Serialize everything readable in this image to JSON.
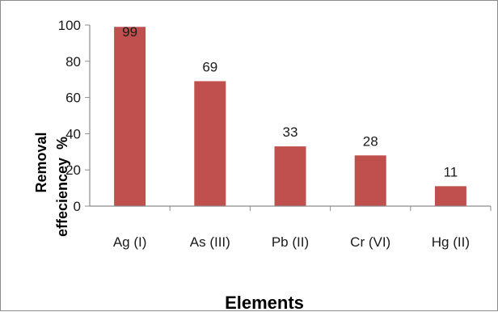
{
  "chart_data": {
    "type": "bar",
    "title": "",
    "categories": [
      "Ag (I)",
      "As (III)",
      "Pb (II)",
      "Cr (VI)",
      "Hg (II)"
    ],
    "values": [
      99,
      69,
      33,
      28,
      11
    ],
    "data_labels": [
      "99",
      "69",
      "33",
      "28",
      "11"
    ],
    "xlabel": "Elements",
    "ylabel_lines": [
      "Removal",
      "effeciencey  %"
    ],
    "ylim": [
      0,
      100
    ],
    "yticks": [
      0,
      20,
      40,
      60,
      80,
      100
    ],
    "grid": false,
    "legend": "none",
    "bar_color": "#c0504d",
    "axis_color": "#8c8c8c"
  }
}
